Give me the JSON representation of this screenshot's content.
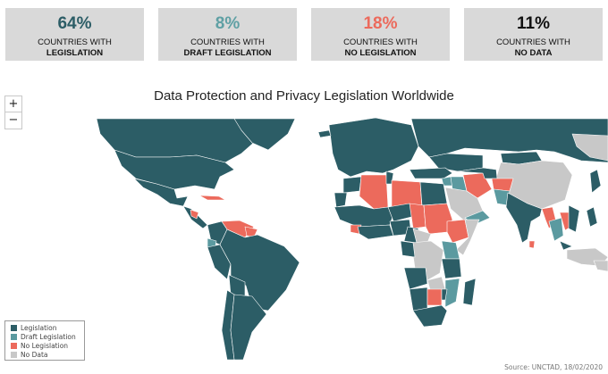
{
  "colors": {
    "legislation": "#2c5d66",
    "draft": "#5b9aa0",
    "none": "#ec6a5c",
    "nodata": "#c8c8c8",
    "stat_legislation": "#2c5d66",
    "stat_draft": "#5fa0a4",
    "stat_none": "#ec6a5c",
    "stat_nodata": "#111111"
  },
  "stats": [
    {
      "value": "64%",
      "line1": "COUNTRIES WITH",
      "line2": "LEGISLATION"
    },
    {
      "value": "8%",
      "line1": "COUNTRIES WITH",
      "line2": "DRAFT LEGISLATION"
    },
    {
      "value": "18%",
      "line1": "COUNTRIES WITH",
      "line2": "NO LEGISLATION"
    },
    {
      "value": "11%",
      "line1": "COUNTRIES WITH",
      "line2": "NO DATA"
    }
  ],
  "map": {
    "title": "Data Protection and Privacy Legislation Worldwide",
    "zoom_in": "+",
    "zoom_out": "−"
  },
  "legend": [
    {
      "label": "Legislation",
      "status": "legislation"
    },
    {
      "label": "Draft Legislation",
      "status": "draft"
    },
    {
      "label": "No Legislation",
      "status": "none"
    },
    {
      "label": "No Data",
      "status": "nodata"
    }
  ],
  "source": "Source: UNCTAD, 18/02/2020"
}
